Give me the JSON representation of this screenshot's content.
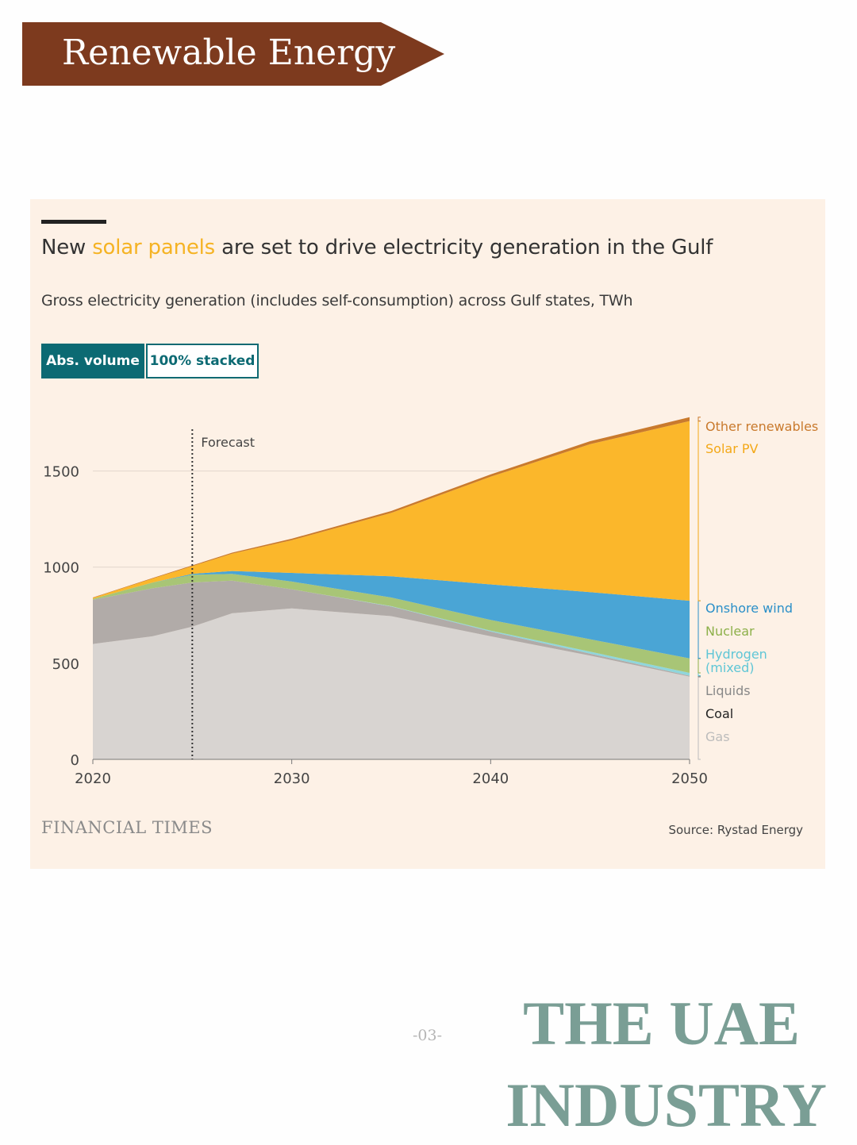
{
  "banner": {
    "text": "Renewable Energy",
    "color": "#7d3a1e"
  },
  "card": {
    "title_pre": "New ",
    "title_highlight": "solar panels",
    "title_post": " are set to drive electricity generation in the Gulf",
    "subtitle": "Gross electricity generation (includes self-consumption) across Gulf states, TWh",
    "toggles": [
      {
        "label": "Abs. volume",
        "active": true
      },
      {
        "label": "100% stacked",
        "active": false
      }
    ],
    "logo": "FINANCIAL TIMES",
    "source": "Source: Rystad Energy"
  },
  "page_number": "-03-",
  "footer": {
    "line1": "THE UAE",
    "line2": "INDUSTRY"
  },
  "chart_data": {
    "type": "area",
    "stacked": true,
    "title": "New solar panels are set to drive electricity generation in the Gulf",
    "subtitle": "Gross electricity generation (includes self-consumption) across Gulf states, TWh",
    "x": [
      2020,
      2023,
      2025,
      2027,
      2030,
      2035,
      2040,
      2045,
      2050
    ],
    "xlim": [
      2020,
      2050
    ],
    "ylim": [
      0,
      1750
    ],
    "x_ticks": [
      "2020",
      "2030",
      "2040",
      "2050"
    ],
    "y_ticks": [
      "0",
      "500",
      "1000",
      "1500"
    ],
    "y_tick_values": [
      0,
      500,
      1000,
      1500
    ],
    "gridlines": true,
    "forecast_marker": {
      "x": 2025,
      "label": "Forecast"
    },
    "series": [
      {
        "name": "Gas",
        "color": "#d8d4d1",
        "label_color": "#bcbcbc",
        "values": [
          600,
          640,
          690,
          760,
          785,
          745,
          640,
          540,
          430
        ]
      },
      {
        "name": "Coal",
        "color": "#d8d4d1",
        "label_color": "#222222",
        "values": [
          0,
          0,
          0,
          0,
          0,
          0,
          0,
          0,
          0
        ]
      },
      {
        "name": "Liquids",
        "color": "#b1aba8",
        "label_color": "#888888",
        "values": [
          230,
          250,
          230,
          170,
          100,
          50,
          25,
          10,
          5
        ]
      },
      {
        "name": "Hydrogen (mixed)",
        "color": "#8fd6dc",
        "label_color": "#5fc6d6",
        "values": [
          0,
          0,
          0,
          0,
          0,
          2,
          5,
          10,
          15
        ]
      },
      {
        "name": "Nuclear",
        "color": "#a8c576",
        "label_color": "#8db04a",
        "values": [
          5,
          30,
          40,
          35,
          40,
          45,
          55,
          65,
          75
        ]
      },
      {
        "name": "Onshore wind",
        "color": "#4aa5d5",
        "label_color": "#2a8fc8",
        "values": [
          0,
          0,
          5,
          15,
          45,
          110,
          185,
          245,
          300
        ]
      },
      {
        "name": "Solar PV",
        "color": "#fbb72b",
        "label_color": "#f3a817",
        "values": [
          5,
          20,
          40,
          90,
          170,
          330,
          560,
          770,
          935
        ]
      },
      {
        "name": "Other renewables",
        "color": "#c97a2d",
        "label_color": "#c97a2d",
        "values": [
          2,
          3,
          4,
          5,
          8,
          10,
          12,
          15,
          20
        ]
      }
    ],
    "legend_placement": "right"
  }
}
